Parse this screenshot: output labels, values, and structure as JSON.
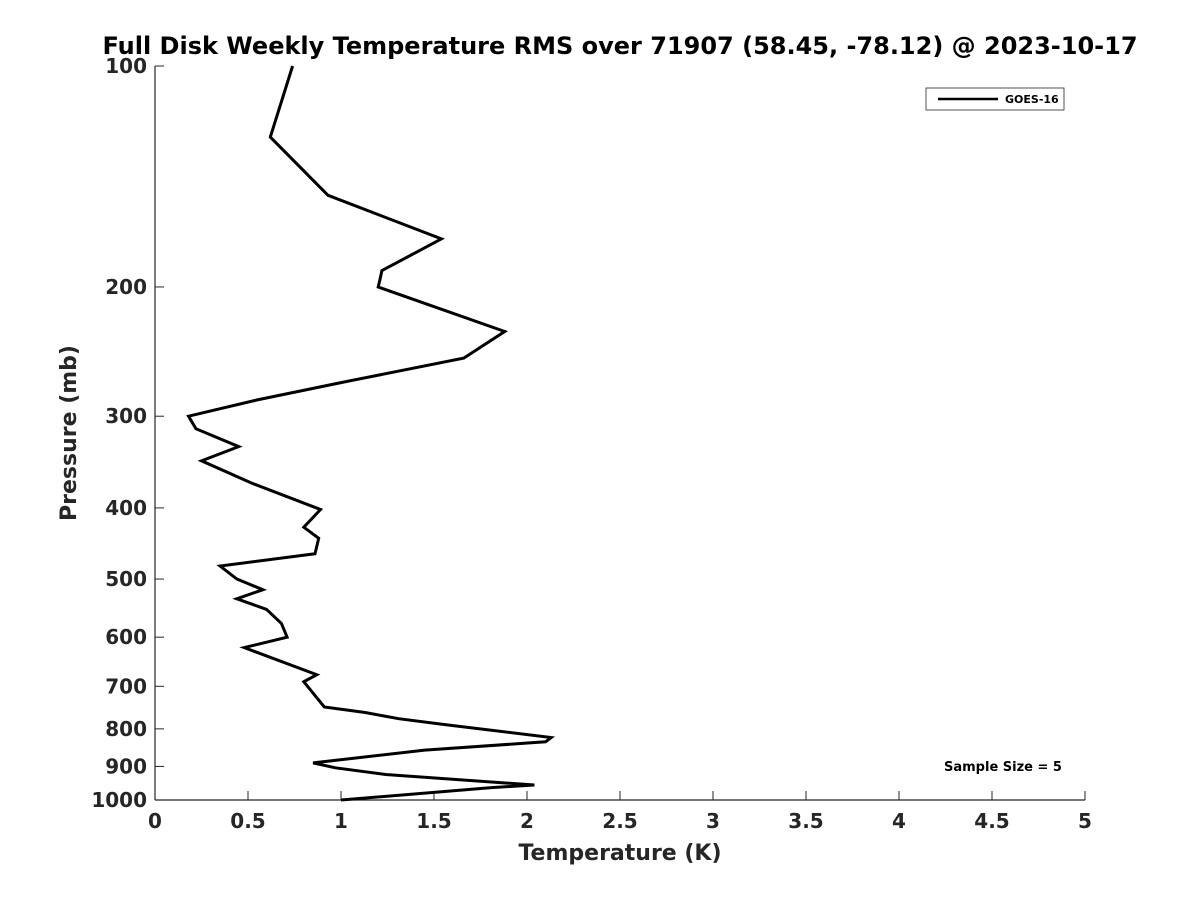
{
  "chart_data": {
    "type": "line",
    "title": "Full Disk Weekly Temperature RMS over 71907 (58.45, -78.12) @ 2023-10-17",
    "xlabel": "Temperature (K)",
    "ylabel": "Pressure (mb)",
    "xlim": [
      0,
      5
    ],
    "ylim": [
      100,
      1000
    ],
    "y_scale": "log",
    "y_reversed": true,
    "xticks": [
      0,
      0.5,
      1,
      1.5,
      2,
      2.5,
      3,
      3.5,
      4,
      4.5,
      5
    ],
    "xtick_labels": [
      "0",
      "0.5",
      "1",
      "1.5",
      "2",
      "2.5",
      "3",
      "3.5",
      "4",
      "4.5",
      "5"
    ],
    "yticks": [
      100,
      200,
      300,
      400,
      500,
      600,
      700,
      800,
      900,
      1000
    ],
    "ytick_labels": [
      "100",
      "200",
      "300",
      "400",
      "500",
      "600",
      "700",
      "800",
      "900",
      "1000"
    ],
    "grid": false,
    "legend_position": "top-right",
    "annotation": "Sample Size = 5",
    "series": [
      {
        "name": "GOES-16",
        "color": "#000000",
        "x": [
          0.74,
          0.62,
          0.93,
          1.54,
          1.22,
          1.21,
          1.2,
          1.88,
          1.66,
          1.0,
          0.55,
          0.18,
          0.22,
          0.45,
          0.25,
          0.52,
          0.89,
          0.8,
          0.88,
          0.86,
          0.35,
          0.44,
          0.58,
          0.44,
          0.6,
          0.68,
          0.71,
          0.48,
          0.87,
          0.8,
          0.84,
          0.91,
          1.13,
          1.31,
          1.57,
          2.13,
          2.1,
          1.45,
          0.85,
          0.97,
          1.24,
          2.04,
          1.8,
          1.0
        ],
        "y": [
          100,
          125,
          150,
          172,
          190,
          195,
          200,
          230,
          250,
          270,
          285,
          300,
          312,
          330,
          345,
          370,
          402,
          425,
          440,
          462,
          480,
          500,
          517,
          532,
          550,
          575,
          600,
          620,
          675,
          690,
          710,
          747,
          760,
          775,
          790,
          822,
          833,
          855,
          890,
          904,
          923,
          954,
          962,
          1000
        ]
      }
    ]
  }
}
